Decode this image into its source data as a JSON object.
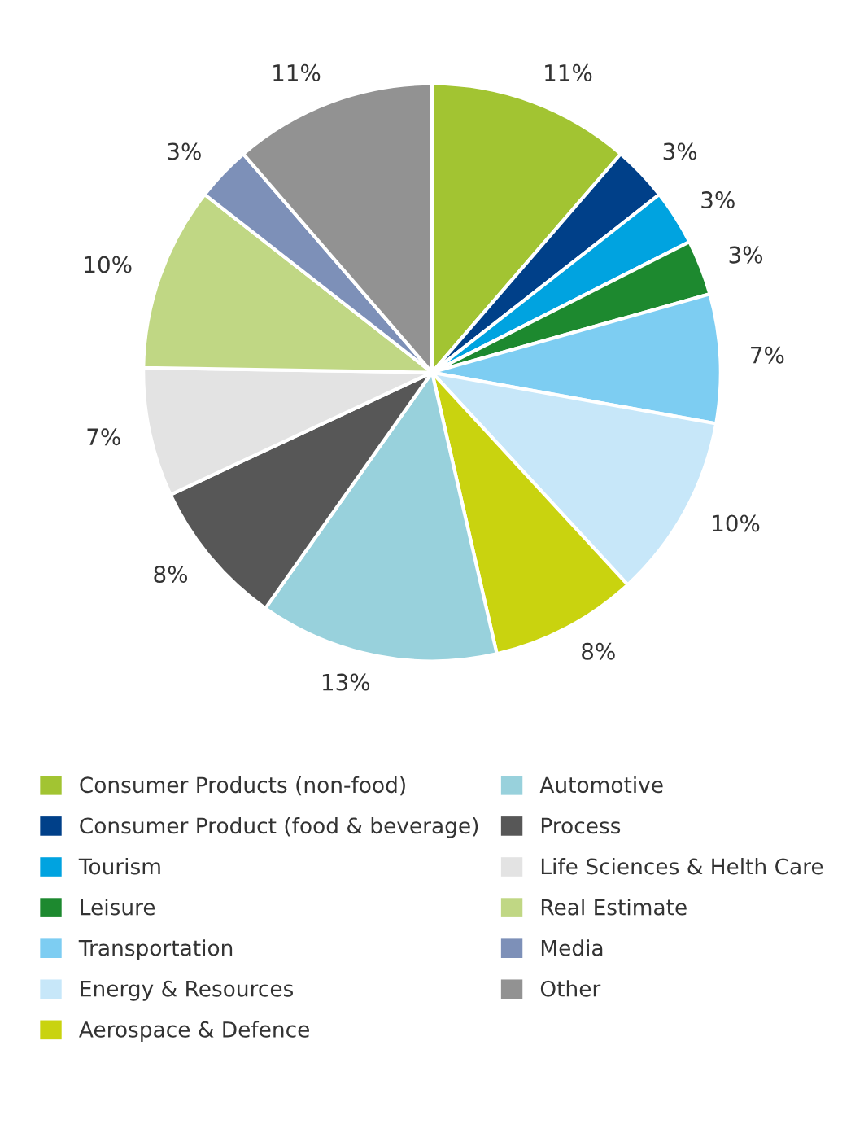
{
  "chart_data": {
    "type": "pie",
    "categories": [
      "Consumer Products (non-food)",
      "Consumer Product (food & beverage)",
      "Tourism",
      "Leisure",
      "Transportation",
      "Energy & Resources",
      "Aerospace & Defence",
      "Automotive",
      "Process",
      "Life Sciences & Helth Care",
      "Real Estimate",
      "Media",
      "Other"
    ],
    "values": [
      11,
      3,
      3,
      3,
      7,
      10,
      8,
      13,
      8,
      7,
      10,
      3,
      11
    ],
    "value_labels": [
      "11%",
      "3%",
      "3%",
      "3%",
      "7%",
      "10%",
      "8%",
      "13%",
      "8%",
      "7%",
      "10%",
      "3%",
      "11%"
    ],
    "colors": [
      "#a2c432",
      "#004089",
      "#00a3e0",
      "#1d892f",
      "#7dcdf2",
      "#c7e7f9",
      "#c9d30f",
      "#98d1dc",
      "#575757",
      "#e3e3e3",
      "#c0d784",
      "#7d90b8",
      "#929292"
    ],
    "legend": "bottom"
  }
}
